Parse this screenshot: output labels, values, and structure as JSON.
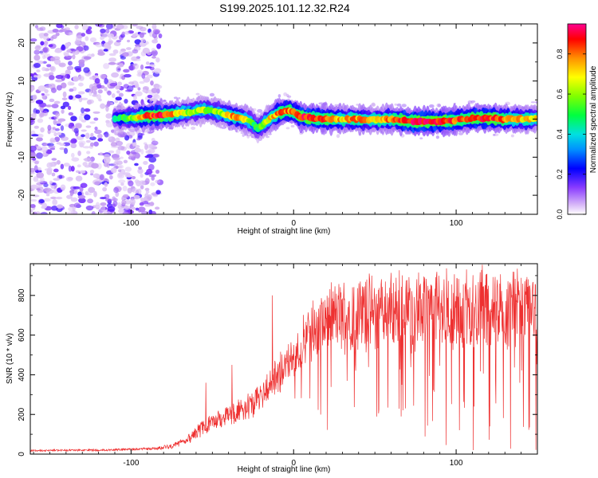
{
  "figure_title": "S199.2025.101.12.32.R24",
  "colors": {
    "snr_line": "#ee3030",
    "axis": "#000000",
    "background": "#ffffff"
  },
  "chart_data": [
    {
      "type": "heatmap",
      "title": "S199.2025.101.12.32.R24",
      "xlabel": "Height of straight line (km)",
      "ylabel": "Frequency (Hz)",
      "xlim": [
        -162,
        150
      ],
      "ylim": [
        -25,
        25
      ],
      "xticks": [
        -100,
        0,
        100
      ],
      "yticks": [
        -20,
        -10,
        0,
        10,
        20
      ],
      "colorbar": {
        "label": "Normalized spectral amplitude",
        "range": [
          0.0,
          0.95
        ],
        "ticks": [
          0.0,
          0.2,
          0.4,
          0.6,
          0.8
        ],
        "colormap": [
          "#ffffff",
          "#c8a0f0",
          "#7020ff",
          "#0000ff",
          "#00c8ff",
          "#00ff80",
          "#60ff00",
          "#ffff00",
          "#ff8000",
          "#ff0000",
          "#ff0080"
        ]
      },
      "noise_region_end_km": -90,
      "ridge": {
        "x": [
          -110,
          -100,
          -90,
          -80,
          -70,
          -62,
          -55,
          -48,
          -42,
          -36,
          -30,
          -26,
          -22,
          -19,
          -15,
          -10,
          -5,
          0,
          5,
          10,
          20,
          30,
          40,
          50,
          60,
          70,
          80,
          90,
          100,
          110,
          120,
          130,
          140,
          148
        ],
        "y": [
          0.2,
          0.3,
          0.8,
          1.0,
          1.5,
          2.0,
          2.5,
          2.0,
          1.2,
          0.6,
          0.0,
          -0.8,
          -2.5,
          -1.5,
          0.0,
          1.5,
          2.2,
          1.8,
          0.6,
          0.3,
          0.1,
          0.0,
          0.0,
          -0.2,
          0.0,
          -0.6,
          -0.6,
          -0.6,
          -0.3,
          0.2,
          0.3,
          0.0,
          0.0,
          0.1
        ],
        "amplitude": [
          0.45,
          0.6,
          0.85,
          0.9,
          0.7,
          0.6,
          0.65,
          0.6,
          0.7,
          0.8,
          0.7,
          0.6,
          0.5,
          0.6,
          0.7,
          0.8,
          0.85,
          0.8,
          0.9,
          0.9,
          0.85,
          0.75,
          0.8,
          0.7,
          0.8,
          0.9,
          0.95,
          0.9,
          0.85,
          0.85,
          0.9,
          0.8,
          0.75,
          0.7
        ]
      }
    },
    {
      "type": "line",
      "xlabel": "Height of straight line (km)",
      "ylabel": "SNR (10 * v/v)",
      "xlim": [
        -162,
        150
      ],
      "ylim": [
        0,
        960
      ],
      "xticks": [
        -100,
        0,
        100
      ],
      "yticks": [
        0,
        200,
        400,
        600,
        800
      ],
      "series": [
        {
          "name": "SNR",
          "envelope_x": [
            -162,
            -120,
            -100,
            -85,
            -75,
            -68,
            -62,
            -56,
            -50,
            -45,
            -40,
            -35,
            -30,
            -25,
            -20,
            -15,
            -10,
            -5,
            0,
            5,
            10,
            15,
            20,
            25,
            30,
            40,
            50,
            60,
            80,
            100,
            120,
            140,
            150
          ],
          "envelope_mean": [
            18,
            20,
            24,
            28,
            40,
            60,
            95,
            130,
            160,
            180,
            200,
            210,
            230,
            250,
            290,
            330,
            400,
            450,
            500,
            550,
            600,
            640,
            670,
            690,
            700,
            710,
            715,
            720,
            725,
            725,
            730,
            730,
            730
          ],
          "envelope_spread": [
            8,
            8,
            10,
            12,
            20,
            30,
            50,
            70,
            80,
            80,
            90,
            90,
            100,
            110,
            120,
            140,
            160,
            180,
            200,
            220,
            240,
            260,
            280,
            290,
            300,
            320,
            320,
            330,
            340,
            340,
            340,
            340,
            340
          ],
          "peaks": [
            {
              "x": -13,
              "y": 800
            },
            {
              "x": -38,
              "y": 450
            },
            {
              "x": -54,
              "y": 360
            },
            {
              "x": 45,
              "y": 880
            },
            {
              "x": 88,
              "y": 900
            },
            {
              "x": 116,
              "y": 955
            },
            {
              "x": 135,
              "y": 920
            }
          ]
        }
      ]
    }
  ]
}
